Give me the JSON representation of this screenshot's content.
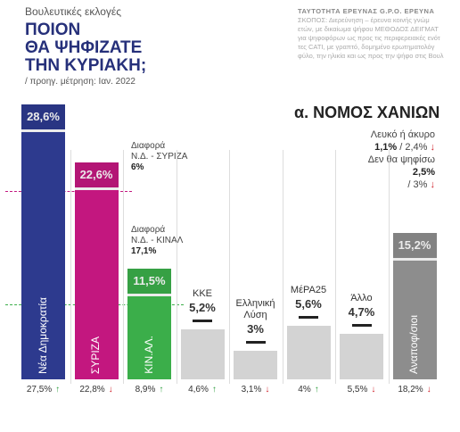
{
  "header": {
    "kicker": "Βουλευτικές εκλογές",
    "title_lines": [
      "ΠΟΙΟΝ",
      "ΘΑ ΨΗΦΙΖΑΤΕ",
      "ΤΗΝ ΚΥΡΙΑΚΗ;"
    ],
    "note": "/ προηγ. μέτρηση: Ιαν. 2022"
  },
  "survey_info": [
    "ΤΑΥΤΟΤΗΤΑ ΕΡΕΥΝΑΣ G.P.O. ΕΡΕΥΝΑ",
    "ΣΚΟΠΟΣ: Διερεύνηση – έρευνα κοινής γνώμ",
    "ετών, με δικαίωμα ψήφου ΜΕΘΟΔΟΣ ΔΕΙΓΜΑΤ",
    "για ψηφοφόρων ως προς τις περιφερειακές ενότ",
    "τες CATI, με γραπτό, δομημένο ερωτηματολόγ",
    "φύλο, την ηλικία και ως προς την ψήφο στις Βουλ"
  ],
  "chart_data": {
    "type": "bar",
    "subtitle": "α. ΝΟΜΟΣ ΧΑΝΙΩΝ",
    "categories": [
      "Νέα Δημοκρατία",
      "ΣΥΡΙΖΑ",
      "ΚΙΝ.ΑΛ.",
      "ΚΚΕ",
      "Ελληνική Λύση",
      "ΜέΡΑ25",
      "Άλλο",
      "Αναποφ/σιοι"
    ],
    "values": [
      28.6,
      22.6,
      11.5,
      5.2,
      3,
      5.6,
      4.7,
      15.2
    ],
    "value_labels": [
      "28,6%",
      "22,6%",
      "11,5%",
      "5,2%",
      "3%",
      "5,6%",
      "4,7%",
      "15,2%"
    ],
    "colors": [
      "#2d3a8e",
      "#c3177f",
      "#3bae4a",
      "#d3d3d3",
      "#d3d3d3",
      "#d3d3d3",
      "#d3d3d3",
      "#8d8d8d"
    ],
    "previous": {
      "values": [
        27.5,
        22.8,
        8.9,
        4.6,
        3.1,
        4,
        5.5,
        18.2
      ],
      "value_labels": [
        "27,5%",
        "22,8%",
        "8,9%",
        "4,6%",
        "3,1%",
        "4%",
        "5,5%",
        "18,2%"
      ],
      "trend": [
        "↑",
        "↓",
        "↑",
        "↑",
        "↓",
        "↑",
        "↓",
        "↓"
      ]
    },
    "annotations": {
      "diff_nd_syriza": [
        "Διαφορά",
        "Ν.Δ. - ΣΥΡΙΖΑ",
        "6%"
      ],
      "diff_nd_kinal": [
        "Διαφορά",
        "Ν.Δ. - ΚΙΝΑΛ",
        "17,1%"
      ],
      "blank": [
        "Λευκό ή άκυρο",
        "1,1%",
        "/ 2,4%",
        "↓"
      ],
      "abstain": [
        "Δεν θα ψηφίσω",
        "2,5%",
        "/ 3%",
        "↓"
      ]
    }
  }
}
